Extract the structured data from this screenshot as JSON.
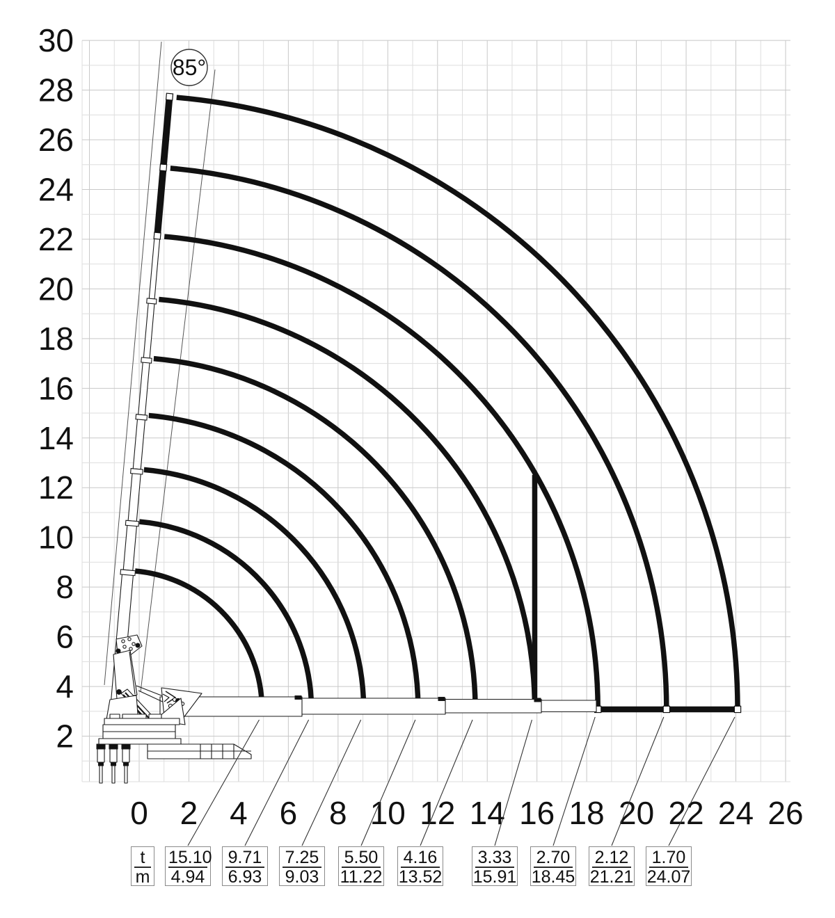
{
  "diagram": {
    "angle_label": "85°",
    "x_axis_labels": [
      "0",
      "2",
      "4",
      "6",
      "8",
      "10",
      "12",
      "14",
      "16",
      "18",
      "20",
      "22",
      "24",
      "26"
    ],
    "y_axis_labels": [
      "30",
      "28",
      "26",
      "24",
      "22",
      "20",
      "18",
      "16",
      "14",
      "12",
      "10",
      "8",
      "6",
      "4",
      "2"
    ],
    "unit_box": {
      "top": "t",
      "bottom": "m"
    },
    "load_points": [
      {
        "t": "15.10",
        "m": "4.94"
      },
      {
        "t": "9.71",
        "m": "6.93"
      },
      {
        "t": "7.25",
        "m": "9.03"
      },
      {
        "t": "5.50",
        "m": "11.22"
      },
      {
        "t": "4.16",
        "m": "13.52"
      },
      {
        "t": "3.33",
        "m": "15.91"
      },
      {
        "t": "2.70",
        "m": "18.45"
      },
      {
        "t": "2.12",
        "m": "21.21"
      },
      {
        "t": "1.70",
        "m": "24.07"
      }
    ],
    "colors": {
      "ink": "#111111",
      "grid_minor": "#dedede",
      "grid_major": "#c8c8c8",
      "box_border": "#8a8a8a"
    }
  },
  "chart_data": {
    "type": "table",
    "columns": [
      "t",
      "m"
    ],
    "rows": [
      [
        15.1,
        4.94
      ],
      [
        9.71,
        6.93
      ],
      [
        7.25,
        9.03
      ],
      [
        5.5,
        11.22
      ],
      [
        4.16,
        13.52
      ],
      [
        3.33,
        15.91
      ],
      [
        2.7,
        18.45
      ],
      [
        2.12,
        21.21
      ],
      [
        1.7,
        24.07
      ]
    ],
    "boom_angle_deg": 85,
    "x_axis": {
      "unit": "m",
      "range": [
        0,
        26
      ],
      "ticks": [
        0,
        2,
        4,
        6,
        8,
        10,
        12,
        14,
        16,
        18,
        20,
        22,
        24,
        26
      ]
    },
    "y_axis": {
      "unit": "m",
      "range": [
        0,
        30
      ],
      "ticks": [
        30,
        28,
        26,
        24,
        22,
        20,
        18,
        16,
        14,
        12,
        10,
        8,
        6,
        4,
        2
      ]
    },
    "grid": true,
    "legend": false
  }
}
